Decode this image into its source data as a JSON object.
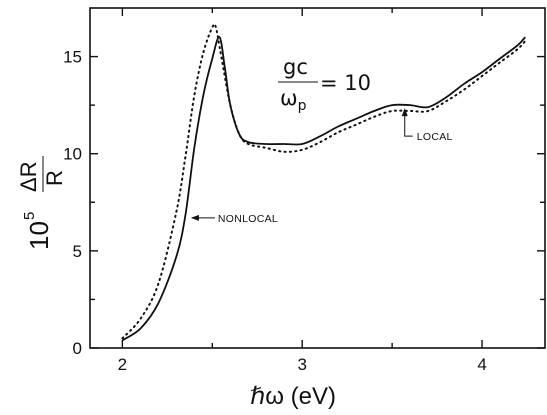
{
  "chart_data": {
    "type": "line",
    "x_tick_labels": [
      "2",
      "3",
      "4"
    ],
    "y_tick_labels": [
      "0",
      "5",
      "10",
      "15"
    ],
    "x_ticks": [
      2,
      3,
      4
    ],
    "y_ticks": [
      0,
      5,
      10,
      15
    ],
    "xlim": [
      1.82,
      4.35
    ],
    "ylim": [
      0,
      17.5
    ],
    "xlabel": {
      "prefix": "ℏω",
      "unit": " (eV)"
    },
    "ylabel": {
      "factor": "10",
      "exponent": "5",
      "numerator": "ΔR",
      "denominator": "R"
    },
    "grid": false,
    "formula": {
      "numerator": "gc",
      "denominator_base": "ω",
      "denominator_sub": "p",
      "equals": "= 10"
    },
    "annotations": [
      {
        "text": "LOCAL",
        "series": "solid"
      },
      {
        "text": "NONLOCAL",
        "series": "solid"
      }
    ],
    "series": [
      {
        "style": "solid",
        "x": [
          2.0,
          2.1,
          2.2,
          2.3,
          2.35,
          2.4,
          2.45,
          2.5,
          2.54,
          2.57,
          2.6,
          2.65,
          2.7,
          2.8,
          2.9,
          3.0,
          3.1,
          3.2,
          3.3,
          3.4,
          3.5,
          3.6,
          3.7,
          3.8,
          3.9,
          4.0,
          4.1,
          4.2,
          4.24
        ],
        "y": [
          0.4,
          1.0,
          2.3,
          4.7,
          6.8,
          10.3,
          13.0,
          14.9,
          16.0,
          14.4,
          12.5,
          11.0,
          10.6,
          10.5,
          10.5,
          10.5,
          10.9,
          11.4,
          11.8,
          12.2,
          12.5,
          12.5,
          12.4,
          12.9,
          13.6,
          14.2,
          14.9,
          15.6,
          16.0
        ]
      },
      {
        "style": "dotted",
        "x": [
          2.0,
          2.1,
          2.2,
          2.3,
          2.35,
          2.4,
          2.45,
          2.5,
          2.52,
          2.55,
          2.6,
          2.65,
          2.7,
          2.8,
          2.9,
          3.0,
          3.1,
          3.2,
          3.3,
          3.4,
          3.5,
          3.6,
          3.7,
          3.8,
          3.9,
          4.0,
          4.1,
          4.2,
          4.24
        ],
        "y": [
          0.5,
          1.5,
          3.3,
          7.0,
          9.8,
          13.0,
          15.2,
          16.5,
          16.5,
          15.0,
          12.5,
          11.0,
          10.5,
          10.3,
          10.1,
          10.2,
          10.6,
          11.1,
          11.5,
          11.9,
          12.2,
          12.2,
          12.2,
          12.7,
          13.3,
          14.0,
          14.7,
          15.4,
          15.8
        ]
      }
    ]
  }
}
